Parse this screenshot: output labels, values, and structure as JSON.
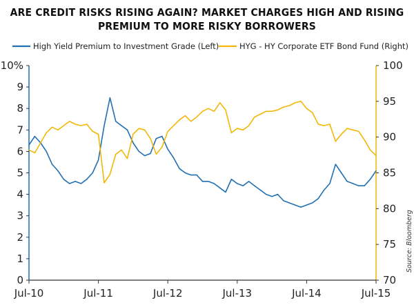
{
  "title_line1": "ARE CREDIT RISKS RISING AGAIN? MARKET CHARGES HIGH AND RISING",
  "title_line2": "PREMIUM TO MORE RISKY BORROWERS",
  "source": "Source: Bloomberg",
  "colors": {
    "left_series": "#1f6fb5",
    "right_series": "#f2b705",
    "axis": "#333333"
  },
  "chart_data": {
    "type": "line",
    "title": "ARE CREDIT RISKS RISING AGAIN? MARKET CHARGES HIGH AND RISING PREMIUM TO MORE RISKY BORROWERS",
    "x_ticks": [
      "Jul-10",
      "Jul-11",
      "Jul-12",
      "Jul-13",
      "Jul-14",
      "Jul-15"
    ],
    "x_range": [
      "2010-07",
      "2015-07"
    ],
    "y_left": {
      "range": [
        0,
        10
      ],
      "ticks": [
        "0",
        "1",
        "2",
        "3",
        "4",
        "5",
        "6",
        "7",
        "8",
        "9",
        "10%"
      ]
    },
    "y_right": {
      "range": [
        70,
        100
      ],
      "ticks": [
        "70",
        "75",
        "80",
        "85",
        "90",
        "95",
        "100"
      ]
    },
    "grid": false,
    "legend_position": "top",
    "series": [
      {
        "name": "High Yield Premium to Investment Grade (Left)",
        "axis": "left",
        "x": [
          "2010-07",
          "2010-08",
          "2010-09",
          "2010-10",
          "2010-11",
          "2010-12",
          "2011-01",
          "2011-02",
          "2011-03",
          "2011-04",
          "2011-05",
          "2011-06",
          "2011-07",
          "2011-08",
          "2011-09",
          "2011-10",
          "2011-11",
          "2011-12",
          "2012-01",
          "2012-02",
          "2012-03",
          "2012-04",
          "2012-05",
          "2012-06",
          "2012-07",
          "2012-08",
          "2012-09",
          "2012-10",
          "2012-11",
          "2012-12",
          "2013-01",
          "2013-02",
          "2013-03",
          "2013-04",
          "2013-05",
          "2013-06",
          "2013-07",
          "2013-08",
          "2013-09",
          "2013-10",
          "2013-11",
          "2013-12",
          "2014-01",
          "2014-02",
          "2014-03",
          "2014-04",
          "2014-05",
          "2014-06",
          "2014-07",
          "2014-08",
          "2014-09",
          "2014-10",
          "2014-11",
          "2014-12",
          "2015-01",
          "2015-02",
          "2015-03",
          "2015-04",
          "2015-05",
          "2015-06",
          "2015-07"
        ],
        "values": [
          6.3,
          6.7,
          6.4,
          6.0,
          5.4,
          5.1,
          4.7,
          4.5,
          4.6,
          4.5,
          4.7,
          5.0,
          5.6,
          7.2,
          8.5,
          7.4,
          7.2,
          7.0,
          6.4,
          6.0,
          5.8,
          5.9,
          6.6,
          6.7,
          6.1,
          5.7,
          5.2,
          5.0,
          4.9,
          4.9,
          4.6,
          4.6,
          4.5,
          4.3,
          4.1,
          4.7,
          4.5,
          4.4,
          4.6,
          4.4,
          4.2,
          4.0,
          3.9,
          4.0,
          3.7,
          3.6,
          3.5,
          3.4,
          3.5,
          3.6,
          3.8,
          4.2,
          4.5,
          5.4,
          5.0,
          4.6,
          4.5,
          4.4,
          4.4,
          4.7,
          5.1
        ]
      },
      {
        "name": "HYG - HY Corporate ETF Bond Fund (Right)",
        "axis": "right",
        "x": [
          "2010-07",
          "2010-08",
          "2010-09",
          "2010-10",
          "2010-11",
          "2010-12",
          "2011-01",
          "2011-02",
          "2011-03",
          "2011-04",
          "2011-05",
          "2011-06",
          "2011-07",
          "2011-08",
          "2011-09",
          "2011-10",
          "2011-11",
          "2011-12",
          "2012-01",
          "2012-02",
          "2012-03",
          "2012-04",
          "2012-05",
          "2012-06",
          "2012-07",
          "2012-08",
          "2012-09",
          "2012-10",
          "2012-11",
          "2012-12",
          "2013-01",
          "2013-02",
          "2013-03",
          "2013-04",
          "2013-05",
          "2013-06",
          "2013-07",
          "2013-08",
          "2013-09",
          "2013-10",
          "2013-11",
          "2013-12",
          "2014-01",
          "2014-02",
          "2014-03",
          "2014-04",
          "2014-05",
          "2014-06",
          "2014-07",
          "2014-08",
          "2014-09",
          "2014-10",
          "2014-11",
          "2014-12",
          "2015-01",
          "2015-02",
          "2015-03",
          "2015-04",
          "2015-05",
          "2015-06",
          "2015-07"
        ],
        "values": [
          88.2,
          87.8,
          89.2,
          90.6,
          91.4,
          91.0,
          91.6,
          92.2,
          91.8,
          91.6,
          91.8,
          90.8,
          90.4,
          83.6,
          84.8,
          87.6,
          88.2,
          87.0,
          90.4,
          91.2,
          91.0,
          89.8,
          87.6,
          88.6,
          90.8,
          91.6,
          92.4,
          93.0,
          92.2,
          92.8,
          93.6,
          94.0,
          93.6,
          94.8,
          93.8,
          90.6,
          91.2,
          91.0,
          91.6,
          92.8,
          93.2,
          93.6,
          93.6,
          93.8,
          94.2,
          94.4,
          94.8,
          95.0,
          94.0,
          93.4,
          91.8,
          91.6,
          91.8,
          89.4,
          90.4,
          91.2,
          91.0,
          90.8,
          89.6,
          88.2,
          87.4
        ]
      }
    ]
  }
}
